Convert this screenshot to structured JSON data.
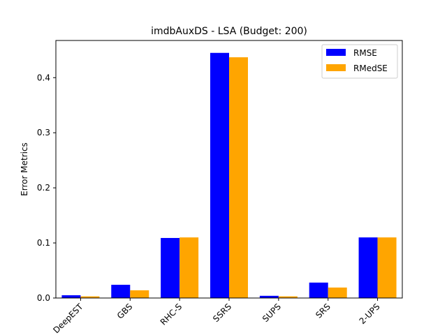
{
  "chart_data": {
    "type": "bar",
    "title": "imdbAuxDS - LSA (Budget: 200)",
    "xlabel": "",
    "ylabel": "Error Metrics",
    "categories": [
      "DeepEST",
      "GBS",
      "RHC-S",
      "SSRS",
      "SUPS",
      "SRS",
      "2-UPS"
    ],
    "series": [
      {
        "name": "RMSE",
        "color": "#0000ff",
        "values": [
          0.005,
          0.024,
          0.109,
          0.445,
          0.004,
          0.028,
          0.11
        ]
      },
      {
        "name": "RMedSE",
        "color": "#ffa500",
        "values": [
          0.003,
          0.014,
          0.11,
          0.437,
          0.003,
          0.019,
          0.11
        ]
      }
    ],
    "ylim": [
      0,
      0.4675
    ],
    "yticks": [
      "0.0",
      "0.1",
      "0.2",
      "0.3",
      "0.4"
    ],
    "ytick_values": [
      0.0,
      0.1,
      0.2,
      0.3,
      0.4
    ],
    "legend_position": "upper right",
    "grid": false
  }
}
